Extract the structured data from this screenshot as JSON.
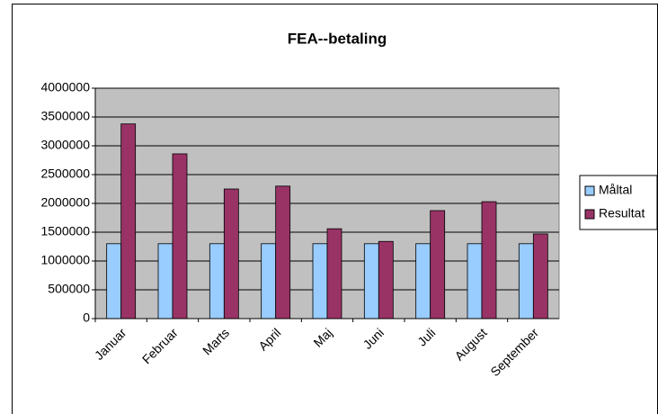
{
  "chart_data": {
    "type": "bar",
    "title": "FEA--betaling",
    "categories": [
      "Januar",
      "Februar",
      "Marts",
      "April",
      "Maj",
      "Juni",
      "Juli",
      "August",
      "September"
    ],
    "series": [
      {
        "name": "Måltal",
        "color": "#99ccff",
        "values": [
          1300000,
          1300000,
          1300000,
          1300000,
          1300000,
          1300000,
          1300000,
          1300000,
          1300000
        ]
      },
      {
        "name": "Resultat",
        "color": "#993366",
        "values": [
          3380000,
          2860000,
          2250000,
          2300000,
          1560000,
          1340000,
          1875000,
          2030000,
          1470000
        ]
      }
    ],
    "ylim": [
      0,
      4000000
    ],
    "yticks": [
      0,
      500000,
      1000000,
      1500000,
      2000000,
      2500000,
      3000000,
      3500000,
      4000000
    ],
    "grid": true,
    "legend": "right"
  }
}
